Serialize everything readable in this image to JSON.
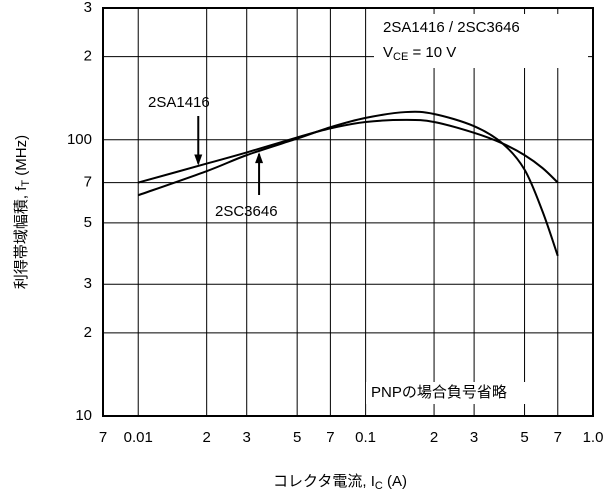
{
  "chart_data": {
    "type": "line",
    "x": [
      0.01,
      0.02,
      0.03,
      0.05,
      0.07,
      0.1,
      0.15,
      0.2,
      0.3,
      0.4,
      0.5,
      0.6,
      0.7
    ],
    "series": [
      {
        "name": "2SA1416",
        "color": "#000000",
        "values": [
          70,
          82,
          90,
          102,
          110,
          116,
          118,
          116,
          106,
          97,
          88,
          79,
          70
        ]
      },
      {
        "name": "2SC3646",
        "color": "#000000",
        "values": [
          63,
          77,
          88,
          101,
          111,
          120,
          126,
          124,
          112,
          97,
          78,
          55,
          38
        ]
      }
    ],
    "log_x": true,
    "log_y": true,
    "grid": true,
    "xlim": [
      0.007,
      1.0
    ],
    "xticks": [
      {
        "value": 0.007,
        "label": "7"
      },
      0.01,
      {
        "value": 0.02,
        "label": "2"
      },
      {
        "value": 0.03,
        "label": "3"
      },
      {
        "value": 0.05,
        "label": "5"
      },
      {
        "value": 0.07,
        "label": "7"
      },
      0.1,
      {
        "value": 0.2,
        "label": "2"
      },
      {
        "value": 0.3,
        "label": "3"
      },
      {
        "value": 0.5,
        "label": "5"
      },
      {
        "value": 0.7,
        "label": "7"
      },
      {
        "value": 1.0,
        "label": "1.0"
      }
    ],
    "ylim": [
      10,
      300
    ],
    "yticks": [
      10,
      {
        "value": 20,
        "label": "2"
      },
      {
        "value": 30,
        "label": "3"
      },
      {
        "value": 50,
        "label": "5"
      },
      {
        "value": 70,
        "label": "7"
      },
      100,
      {
        "value": 200,
        "label": "2"
      },
      {
        "value": 300,
        "label": "3"
      }
    ],
    "xlabel": [
      "コレクタ電流, I",
      "C",
      " (A)"
    ],
    "ylabel": [
      "利得帯域幅積, f",
      "T",
      " (MHz)"
    ],
    "annotations": {
      "device": "2SA1416 / 2SC3646",
      "condition": [
        "V",
        "CE",
        " = 10 V"
      ],
      "note": "PNPの場合負号省略"
    }
  }
}
